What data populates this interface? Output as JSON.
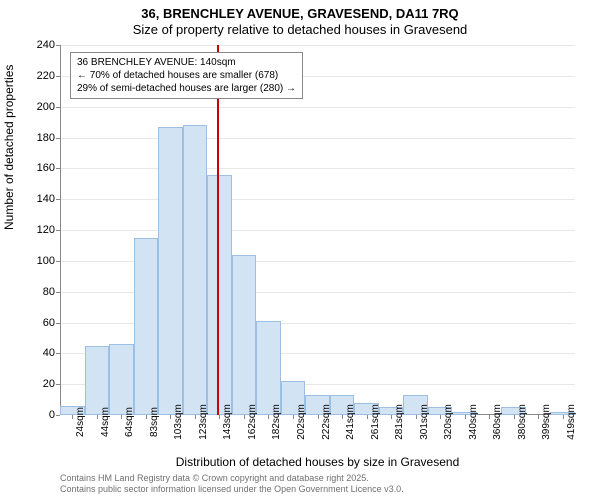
{
  "title": {
    "line1": "36, BRENCHLEY AVENUE, GRAVESEND, DA11 7RQ",
    "line2": "Size of property relative to detached houses in Gravesend",
    "fontsize": 13
  },
  "ylabel": "Number of detached properties",
  "xlabel": "Distribution of detached houses by size in Gravesend",
  "label_fontsize": 12,
  "chart": {
    "type": "histogram",
    "x_categories": [
      "24sqm",
      "44sqm",
      "64sqm",
      "83sqm",
      "103sqm",
      "123sqm",
      "143sqm",
      "162sqm",
      "182sqm",
      "202sqm",
      "222sqm",
      "241sqm",
      "261sqm",
      "281sqm",
      "301sqm",
      "320sqm",
      "340sqm",
      "360sqm",
      "380sqm",
      "399sqm",
      "419sqm"
    ],
    "values": [
      6,
      45,
      46,
      115,
      187,
      188,
      156,
      104,
      61,
      22,
      13,
      13,
      8,
      5,
      13,
      5,
      2,
      0,
      5,
      0,
      2
    ],
    "ylim": [
      0,
      240
    ],
    "ytick_step": 20,
    "bar_fill": "#d2e3f4",
    "bar_border": "#9dbfe2",
    "grid_color": "#e8e8e8",
    "axis_color": "#888888",
    "background_color": "#ffffff",
    "tick_fontsize": 10
  },
  "reference_line": {
    "position_index": 5.9,
    "color": "#cc0000"
  },
  "info_box": {
    "line1": "36 BRENCHLEY AVENUE: 140sqm",
    "line2": "← 70% of detached houses are smaller (678)",
    "line3": "29% of semi-detached houses are larger (280) →",
    "border_color": "#888888",
    "fontsize": 10
  },
  "footer": {
    "line1": "Contains HM Land Registry data © Crown copyright and database right 2025.",
    "line2": "Contains public sector information licensed under the Open Government Licence v3.0.",
    "color": "#707070",
    "fontsize": 9
  }
}
